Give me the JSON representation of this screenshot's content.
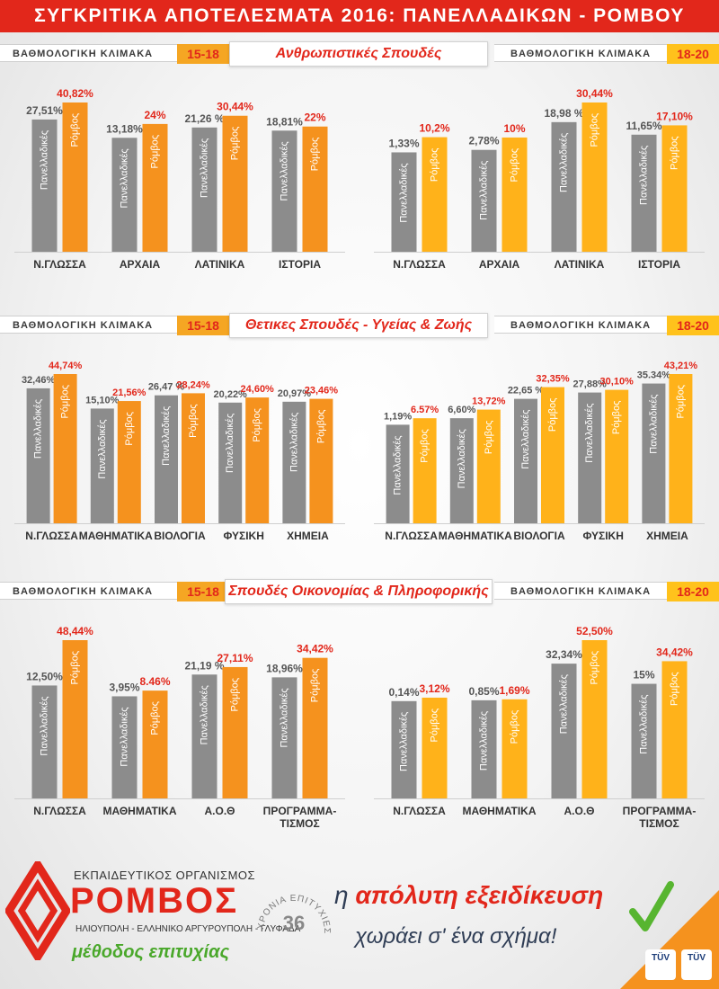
{
  "banner": {
    "title": "ΣΥΓΚΡΙΤΙΚΑ ΑΠΟΤΕΛΕΣΜΑΤΑ 2016: ΠΑΝΕΛΛΑΔΙΚΩΝ - ΡΟΜΒΟΥ"
  },
  "scale_label": "ΒΑΘΜΟΛΟΓΙΚΗ ΚΛΙΜΑΚΑ",
  "range_low": "15-18",
  "range_high": "18-20",
  "colors": {
    "red": "#e2271b",
    "gray_bar": "#8c8c8c",
    "orange_bar": "#f5921e",
    "yellow_bar": "#ffb21a",
    "slogan_navy": "#2f3d55",
    "green": "#4aa82b"
  },
  "sections": [
    {
      "title": "Ανθρωπιστικές Σπουδές"
    },
    {
      "title": "Θετικες Σπουδές - Υγείας & Ζωής"
    },
    {
      "title": "Σπουδές Οικονομίας & Πληροφορικής"
    }
  ],
  "chart_data": [
    {
      "type": "bar",
      "title": "",
      "scale": "15-18",
      "categories": [
        "Ν.ΓΛΩΣΣΑ",
        "ΑΡΧΑΙΑ",
        "ΛΑΤΙΝΙΚΑ",
        "ΙΣΤΟΡΙΑ"
      ],
      "series": [
        {
          "name": "Πανελλαδικές",
          "values": [
            27.51,
            13.18,
            21.26,
            18.81
          ],
          "labels": [
            "27,51%",
            "13,18%",
            "21,26 %",
            "18,81%"
          ]
        },
        {
          "name": "Ρόμβος",
          "values": [
            40.82,
            24,
            30.44,
            22
          ],
          "labels": [
            "40,82%",
            "24%",
            "30,44%",
            "22%"
          ]
        }
      ]
    },
    {
      "type": "bar",
      "title": "",
      "scale": "18-20",
      "categories": [
        "Ν.ΓΛΩΣΣΑ",
        "ΑΡΧΑΙΑ",
        "ΛΑΤΙΝΙΚΑ",
        "ΙΣΤΟΡΙΑ"
      ],
      "series": [
        {
          "name": "Πανελλαδικές",
          "values": [
            1.33,
            2.78,
            18.98,
            11.65
          ],
          "labels": [
            "1,33%",
            "2,78%",
            "18,98 %",
            "11,65%"
          ]
        },
        {
          "name": "Ρόμβος",
          "values": [
            10.2,
            10,
            30.44,
            17.1
          ],
          "labels": [
            "10,2%",
            "10%",
            "30,44%",
            "17,10%"
          ]
        }
      ]
    },
    {
      "type": "bar",
      "title": "",
      "scale": "15-18",
      "categories": [
        "Ν.ΓΛΩΣΣΑ",
        "ΜΑΘΗΜΑΤΙΚΑ",
        "ΒΙΟΛΟΓΙΑ",
        "ΦΥΣΙΚΗ",
        "ΧΗΜΕΙΑ"
      ],
      "series": [
        {
          "name": "Πανελλαδικές",
          "values": [
            32.46,
            15.1,
            26.47,
            20.22,
            20.97
          ],
          "labels": [
            "32,46%",
            "15,10%",
            "26,47 %",
            "20,22%",
            "20,97%"
          ]
        },
        {
          "name": "Ρόμβος",
          "values": [
            44.74,
            21.56,
            28.24,
            24.6,
            23.46
          ],
          "labels": [
            "44,74%",
            "21,56%",
            "28,24%",
            "24,60%",
            "23,46%"
          ]
        }
      ]
    },
    {
      "type": "bar",
      "title": "",
      "scale": "18-20",
      "categories": [
        "Ν.ΓΛΩΣΣΑ",
        "ΜΑΘΗΜΑΤΙΚΑ",
        "ΒΙΟΛΟΓΙΑ",
        "ΦΥΣΙΚΗ",
        "ΧΗΜΕΙΑ"
      ],
      "series": [
        {
          "name": "Πανελλαδικές",
          "values": [
            1.19,
            6.6,
            22.65,
            27.88,
            35.34
          ],
          "labels": [
            "1,19%",
            "6,60%",
            "22,65 %",
            "27,88%",
            "35.34%"
          ]
        },
        {
          "name": "Ρόμβος",
          "values": [
            6.57,
            13.72,
            32.35,
            30.1,
            43.21
          ],
          "labels": [
            "6.57%",
            "13,72%",
            "32,35%",
            "30,10%",
            "43,21%"
          ]
        }
      ]
    },
    {
      "type": "bar",
      "title": "",
      "scale": "15-18",
      "categories": [
        "Ν.ΓΛΩΣΣΑ",
        "ΜΑΘΗΜΑΤΙΚΑ",
        "Α.Ο.Θ",
        "ΠΡΟΓΡΑΜΜΑ-ΤΙΣΜΟΣ"
      ],
      "series": [
        {
          "name": "Πανελλαδικές",
          "values": [
            12.5,
            3.95,
            21.19,
            18.96
          ],
          "labels": [
            "12,50%",
            "3,95%",
            "21,19 %",
            "18,96%"
          ]
        },
        {
          "name": "Ρόμβος",
          "values": [
            48.44,
            8.46,
            27.11,
            34.42
          ],
          "labels": [
            "48,44%",
            "8.46%",
            "27,11%",
            "34,42%"
          ]
        }
      ]
    },
    {
      "type": "bar",
      "title": "",
      "scale": "18-20",
      "categories": [
        "Ν.ΓΛΩΣΣΑ",
        "ΜΑΘΗΜΑΤΙΚΑ",
        "Α.Ο.Θ",
        "ΠΡΟΓΡΑΜΜΑ-ΤΙΣΜΟΣ"
      ],
      "series": [
        {
          "name": "Πανελλαδικές",
          "values": [
            0.14,
            0.85,
            32.34,
            15
          ],
          "labels": [
            "0,14%",
            "0,85%",
            "32,34%",
            "15%"
          ]
        },
        {
          "name": "Ρόμβος",
          "values": [
            3.12,
            1.69,
            52.5,
            34.42
          ],
          "labels": [
            "3,12%",
            "1,69%",
            "52,50%",
            "34,42%"
          ]
        }
      ]
    }
  ],
  "footer": {
    "org_label": "ΕΚΠΑΙΔΕΥΤΙΚΟΣ ΟΡΓΑΝΙΣΜΟΣ",
    "org_name": "ΡΟΜΒΟΣ",
    "places": "ΗΛΙΟΥΠΟΛΗ - ΕΛΛΗΝΙΚΟ ΑΡΓΥΡΟΥΠΟΛΗ - ΓΛΥΦΑΔΑ",
    "motto": "μέθοδος επιτυχίας",
    "years_text": "ΧΡΟΝΙΑ ΕΠΙΤΥΧΙΕΣ",
    "years_number": "36",
    "slogan_lead": "η ",
    "slogan_accent": "απόλυτη εξειδίκευση",
    "slogan_line2": "χωράει σ' ένα σχήμα!",
    "tuv": "TÜV"
  }
}
